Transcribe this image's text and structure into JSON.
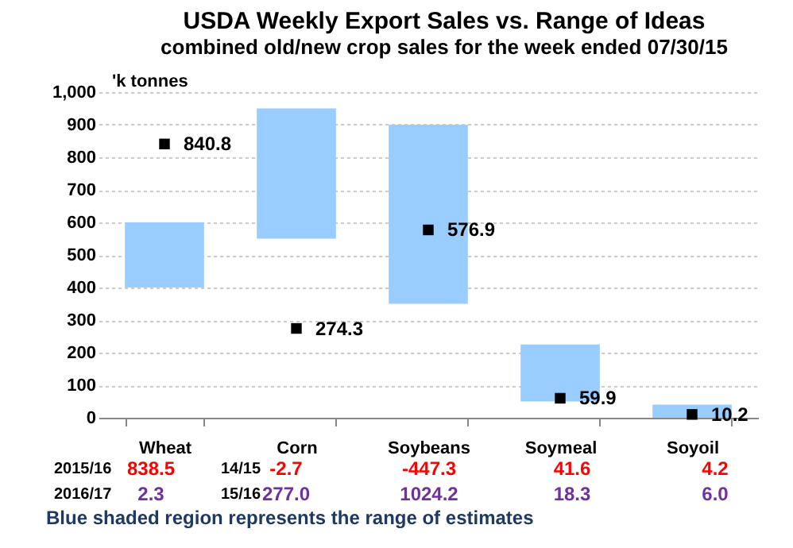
{
  "chart_data": {
    "type": "bar",
    "title": "USDA Weekly Export Sales vs. Range of Ideas",
    "subtitle": "combined old/new crop sales for the week ended 07/30/15",
    "ylabel": "'k tonnes",
    "categories": [
      "Wheat",
      "Corn",
      "Soybeans",
      "Soymeal",
      "Soyoil"
    ],
    "series": [
      {
        "color": "#99ccff",
        "base": [
          400,
          550,
          350,
          50,
          0
        ],
        "values": [
          200,
          400,
          550,
          175,
          40
        ]
      },
      {
        "type": "scatter",
        "color": "#000000",
        "marker": "square",
        "values": [
          840.8,
          274.3,
          576.9,
          59.9,
          10.2
        ],
        "value_labels": [
          "840.8",
          "274.3",
          "576.9",
          "59.9",
          "10.2"
        ]
      }
    ],
    "ylim": [
      0,
      1000
    ],
    "yticks": [
      0,
      100,
      200,
      300,
      400,
      500,
      600,
      700,
      800,
      900,
      {
        "value": 1000,
        "label": "1,000"
      }
    ],
    "grid": "y",
    "annotations": [
      "2015/16",
      "838.5",
      "14/15",
      "-2.7",
      "-447.3",
      "41.6",
      "4.2",
      "2016/17",
      "2.3",
      "15/16",
      "277.0",
      "1024.2",
      "18.3",
      "6.0",
      "Blue shaded region represents the range of estimates"
    ]
  }
}
